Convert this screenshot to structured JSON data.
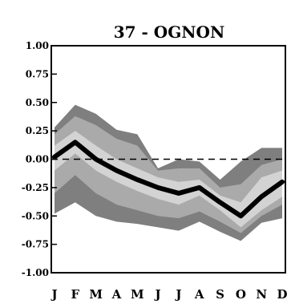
{
  "chart_data": {
    "type": "area",
    "title": "37 - OGNON",
    "xlabel": "",
    "ylabel": "",
    "categories": [
      "J",
      "F",
      "M",
      "A",
      "M",
      "J",
      "J",
      "A",
      "S",
      "O",
      "N",
      "D"
    ],
    "yticks": [
      "1.00",
      "0.75",
      "0.50",
      "0.25",
      "0.00",
      "-0.25",
      "-0.50",
      "-0.75",
      "-1.00"
    ],
    "ytick_values": [
      1.0,
      0.75,
      0.5,
      0.25,
      0.0,
      -0.25,
      -0.5,
      -0.75,
      -1.0
    ],
    "ylim": [
      -1.0,
      1.0
    ],
    "reference_line": 0.0,
    "grid": false,
    "series": [
      {
        "role": "outer-band",
        "color": "#7f7f7f",
        "upper": [
          0.28,
          0.48,
          0.4,
          0.26,
          0.22,
          -0.08,
          0.0,
          -0.02,
          -0.18,
          -0.02,
          0.1,
          0.1
        ],
        "lower": [
          -0.48,
          -0.38,
          -0.5,
          -0.55,
          -0.57,
          -0.6,
          -0.63,
          -0.55,
          -0.64,
          -0.72,
          -0.56,
          -0.52
        ]
      },
      {
        "role": "middle-band",
        "color": "#aaaaaa",
        "upper": [
          0.22,
          0.38,
          0.3,
          0.18,
          0.12,
          -0.1,
          -0.08,
          -0.08,
          -0.25,
          -0.22,
          -0.05,
          0.0
        ],
        "lower": [
          -0.3,
          -0.14,
          -0.3,
          -0.4,
          -0.45,
          -0.5,
          -0.52,
          -0.46,
          -0.55,
          -0.65,
          -0.5,
          -0.4
        ]
      },
      {
        "role": "inner-band",
        "color": "#d3d3d3",
        "upper": [
          0.12,
          0.25,
          0.12,
          0.0,
          -0.08,
          -0.16,
          -0.2,
          -0.18,
          -0.32,
          -0.38,
          -0.16,
          -0.1
        ],
        "lower": [
          -0.1,
          0.05,
          -0.1,
          -0.2,
          -0.28,
          -0.35,
          -0.4,
          -0.32,
          -0.45,
          -0.6,
          -0.45,
          -0.33
        ]
      },
      {
        "role": "median",
        "color": "#000000",
        "values": [
          0.02,
          0.15,
          0.0,
          -0.1,
          -0.18,
          -0.25,
          -0.3,
          -0.25,
          -0.38,
          -0.5,
          -0.33,
          -0.2
        ]
      }
    ]
  }
}
